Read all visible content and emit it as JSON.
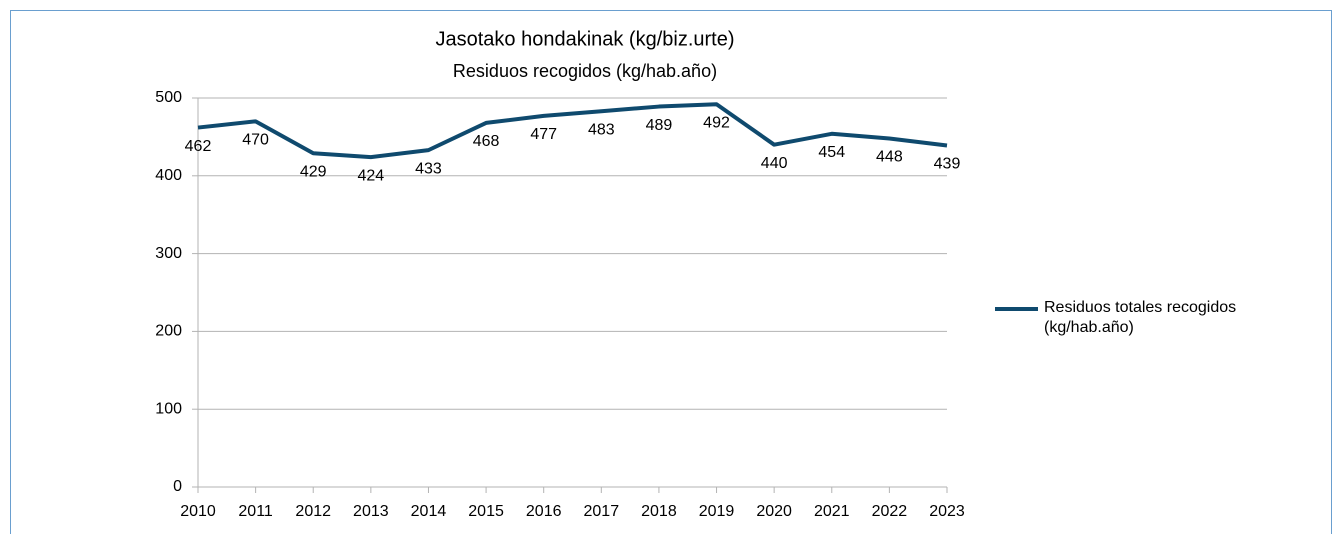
{
  "chart_data": {
    "type": "line",
    "title": "Jasotako hondakinak (kg/biz.urte)",
    "subtitle": "Residuos recogidos (kg/hab.año)",
    "x": [
      2010,
      2011,
      2012,
      2013,
      2014,
      2015,
      2016,
      2017,
      2018,
      2019,
      2020,
      2021,
      2022,
      2023
    ],
    "series": [
      {
        "name": "Residuos totales recogidos (kg/hab.año)",
        "color": "#0f4a6e",
        "values": [
          462,
          470,
          429,
          424,
          433,
          468,
          477,
          483,
          489,
          492,
          440,
          454,
          448,
          439
        ]
      }
    ],
    "xlim": [
      2010,
      2023
    ],
    "xticks": [
      2010,
      2011,
      2012,
      2013,
      2014,
      2015,
      2016,
      2017,
      2018,
      2019,
      2020,
      2021,
      2022,
      2023
    ],
    "ylim": [
      0,
      500
    ],
    "yticks": [
      0,
      100,
      200,
      300,
      400,
      500
    ],
    "grid": true,
    "legend": "right"
  }
}
